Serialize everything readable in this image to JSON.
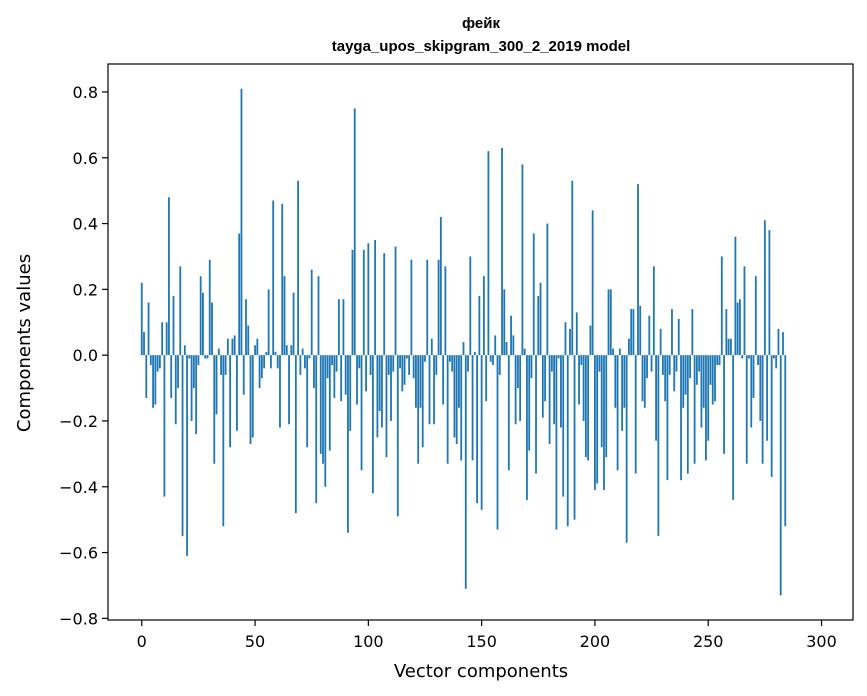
{
  "chart_data": {
    "type": "bar",
    "title_lines": [
      "фейк",
      "tayga_upos_skipgram_300_2_2019 model"
    ],
    "xlabel": "Vector components",
    "ylabel": "Components values",
    "xlim": [
      -14.9,
      313.9
    ],
    "ylim": [
      -0.805,
      0.885
    ],
    "x_ticks": [
      0,
      50,
      100,
      150,
      200,
      250,
      300
    ],
    "x_tick_labels": [
      "0",
      "50",
      "100",
      "150",
      "200",
      "250",
      "300"
    ],
    "y_ticks": [
      -0.8,
      -0.6,
      -0.4,
      -0.2,
      0.0,
      0.2,
      0.4,
      0.6,
      0.8
    ],
    "y_tick_labels": [
      "−0.8",
      "−0.6",
      "−0.4",
      "−0.2",
      "0.0",
      "0.2",
      "0.4",
      "0.6",
      "0.8"
    ],
    "bar_color": "#1f77b4",
    "grid": false,
    "values": [
      0.22,
      0.07,
      -0.13,
      0.16,
      -0.03,
      -0.16,
      -0.15,
      -0.05,
      -0.04,
      0.1,
      -0.43,
      0.1,
      0.48,
      -0.13,
      0.18,
      -0.21,
      -0.1,
      0.27,
      -0.55,
      0.03,
      -0.61,
      -0.01,
      -0.2,
      -0.1,
      -0.24,
      -0.03,
      0.24,
      0.19,
      -0.01,
      -0.01,
      0.29,
      0.16,
      -0.33,
      -0.18,
      0.02,
      -0.06,
      -0.52,
      -0.06,
      0.05,
      -0.28,
      0.05,
      0.06,
      -0.23,
      0.37,
      0.81,
      -0.12,
      0.17,
      0.09,
      -0.27,
      -0.25,
      0.03,
      0.05,
      -0.1,
      -0.07,
      -0.04,
      0.01,
      0.2,
      -0.04,
      0.47,
      0.01,
      -0.04,
      -0.22,
      0.46,
      0.24,
      0.03,
      -0.21,
      0.03,
      0.19,
      -0.48,
      0.53,
      -0.06,
      0.02,
      -0.04,
      -0.28,
      -0.01,
      0.26,
      -0.1,
      -0.45,
      0.24,
      -0.3,
      -0.33,
      -0.4,
      -0.07,
      -0.29,
      -0.03,
      -0.13,
      -0.05,
      0.17,
      -0.14,
      0.17,
      -0.12,
      -0.54,
      -0.23,
      0.32,
      0.75,
      -0.15,
      -0.04,
      -0.35,
      0.32,
      -0.11,
      0.34,
      -0.06,
      -0.42,
      0.35,
      -0.25,
      -0.17,
      -0.22,
      0.31,
      -0.31,
      -0.06,
      -0.2,
      -0.05,
      0.33,
      -0.49,
      -0.04,
      -0.11,
      -0.09,
      -0.01,
      -0.06,
      0.29,
      -0.07,
      -0.16,
      -0.33,
      -0.16,
      -0.28,
      -0.02,
      0.29,
      -0.21,
      0.05,
      -0.21,
      -0.06,
      0.29,
      0.42,
      -0.15,
      0.27,
      -0.33,
      -0.02,
      -0.05,
      -0.25,
      -0.27,
      -0.16,
      -0.32,
      0.04,
      -0.71,
      -0.05,
      0.3,
      -0.32,
      0.01,
      -0.45,
      0.18,
      -0.47,
      0.24,
      -0.14,
      0.62,
      -0.02,
      -0.03,
      0.06,
      -0.53,
      -0.06,
      0.63,
      0.2,
      0.04,
      -0.35,
      0.12,
      0.06,
      -0.21,
      -0.1,
      -0.2,
      0.58,
      0.02,
      -0.44,
      -0.29,
      -0.07,
      0.37,
      -0.36,
      0.18,
      0.22,
      -0.19,
      -0.14,
      0.4,
      -0.27,
      -0.05,
      -0.21,
      -0.53,
      -0.01,
      -0.22,
      -0.43,
      0.1,
      -0.52,
      0.08,
      0.53,
      -0.5,
      0.13,
      -0.15,
      -0.03,
      -0.2,
      -0.31,
      -0.32,
      0.09,
      0.44,
      -0.41,
      -0.39,
      -0.05,
      -0.28,
      -0.41,
      -0.31,
      0.2,
      0.2,
      0.02,
      -0.16,
      -0.35,
      0.02,
      -0.23,
      -0.16,
      -0.57,
      0.05,
      0.14,
      0.14,
      -0.36,
      0.52,
      0.15,
      -0.14,
      -0.16,
      -0.07,
      0.12,
      -0.05,
      0.27,
      -0.26,
      -0.55,
      0.08,
      -0.06,
      -0.14,
      -0.38,
      -0.06,
      0.14,
      -0.11,
      -0.05,
      0.11,
      -0.38,
      -0.16,
      -0.12,
      -0.36,
      -0.07,
      0.14,
      -0.33,
      -0.09,
      -0.05,
      -0.22,
      -0.16,
      -0.32,
      -0.26,
      -0.09,
      -0.15,
      -0.14,
      -0.03,
      -0.03,
      0.3,
      -0.3,
      0.14,
      0.05,
      0.05,
      -0.44,
      0.36,
      0.16,
      0.17,
      -0.01,
      0.27,
      -0.33,
      -0.01,
      -0.22,
      -0.13,
      0.24,
      -0.03,
      -0.2,
      -0.33,
      0.41,
      -0.26,
      0.38,
      -0.37,
      -0.01,
      -0.04,
      0.08,
      -0.73,
      0.07,
      -0.52
    ]
  }
}
